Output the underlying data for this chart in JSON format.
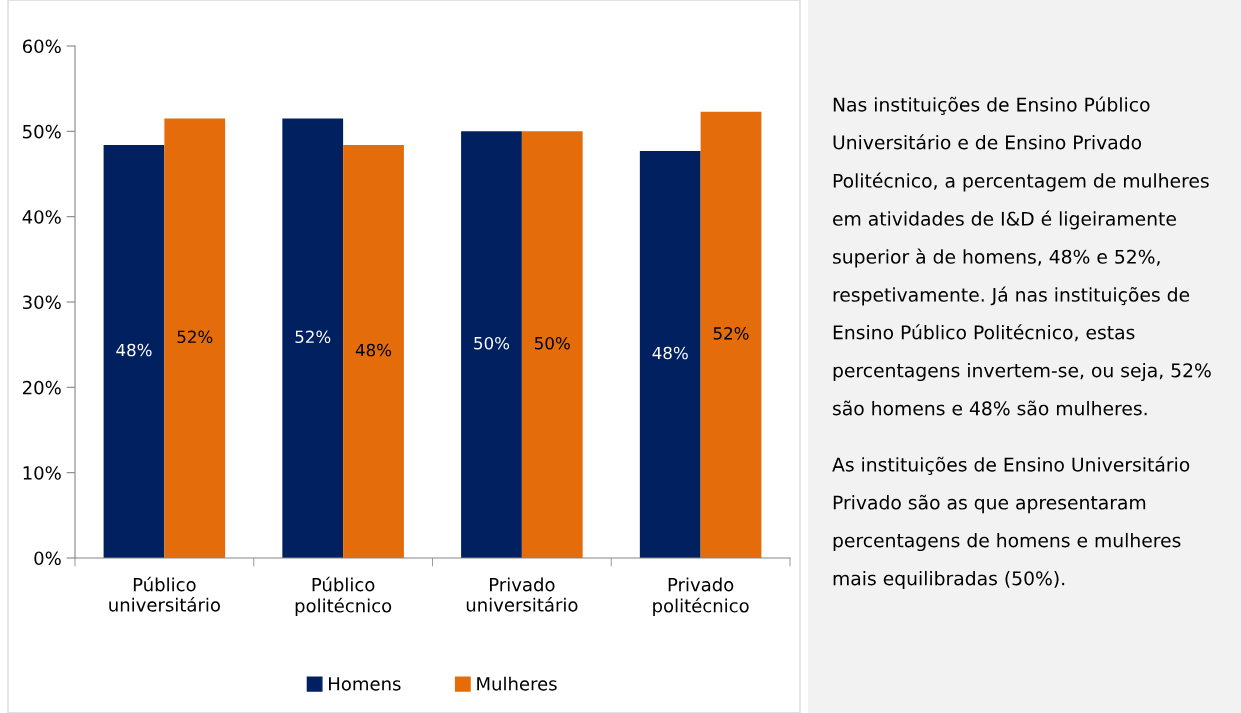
{
  "chart_data": [
    {
      "type": "bar",
      "categories": [
        "Público\nuniversitário",
        "Público\npolitécnico",
        "Privado\nuniversitário",
        "Privado\npolitécnico"
      ],
      "series": [
        {
          "name": "Homens",
          "color": "#002060",
          "values": [
            48.4,
            51.5,
            50.0,
            47.7
          ],
          "value_labels": [
            "48%",
            "52%",
            "50%",
            "48%"
          ]
        },
        {
          "name": "Mulheres",
          "color": "#e46c0a",
          "values": [
            51.5,
            48.4,
            50.0,
            52.3
          ],
          "value_labels": [
            "52%",
            "48%",
            "50%",
            "52%"
          ]
        }
      ],
      "ylim": [
        0,
        60
      ],
      "yticks": [
        {
          "value": 0,
          "label": "0%"
        },
        {
          "value": 10,
          "label": "10%"
        },
        {
          "value": 20,
          "label": "20%"
        },
        {
          "value": 30,
          "label": "30%"
        },
        {
          "value": 40,
          "label": "40%"
        },
        {
          "value": 50,
          "label": "50%"
        },
        {
          "value": 60,
          "label": "60%"
        }
      ],
      "grid": false,
      "legend": "bottom"
    },
    {
      "type": "other",
      "annotations": [
        "Nas instituições de Ensino Público Universitário e de Ensino Privado Politécnico, a percentagem de mulheres em atividades de I&D é ligeiramente superior à de homens, 48% e 52%, respetivamente. Já nas instituições de Ensino Público Politécnico, estas percentagens invertem-se, ou seja, 52% são homens e 48% são mulheres.",
        "As instituições de Ensino Universitário Privado são as que apresentaram percentagens de homens e mulheres mais equilibradas (50%)."
      ]
    }
  ]
}
